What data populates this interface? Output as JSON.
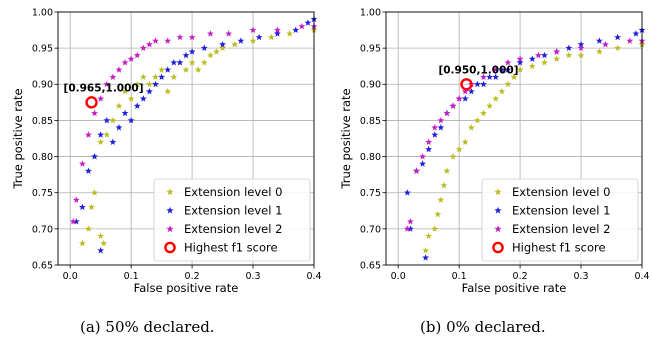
{
  "captions": [
    "(a) 50% declared.",
    "(b) 0% declared."
  ],
  "chart_data": [
    {
      "type": "scatter",
      "xlabel": "False positive rate",
      "ylabel": "True positive rate",
      "xlim": [
        -0.02,
        0.4
      ],
      "ylim": [
        0.65,
        1.0
      ],
      "xticks": [
        "0.0",
        "0.1",
        "0.2",
        "0.3",
        "0.4"
      ],
      "yticks": [
        "0.65",
        "0.70",
        "0.75",
        "0.80",
        "0.85",
        "0.90",
        "0.95",
        "1.00"
      ],
      "grid": true,
      "legend_position": "lower-right",
      "annotation": {
        "label": "[0.965,1.000]",
        "x": 0.035,
        "y": 0.875
      },
      "highlight": {
        "name": "Highest f1 score",
        "x": 0.035,
        "y": 0.875,
        "color": "#ff0000"
      },
      "series": [
        {
          "name": "Extension level 0",
          "color": "#bcbd22",
          "points": [
            [
              0.02,
              0.68
            ],
            [
              0.03,
              0.7
            ],
            [
              0.035,
              0.73
            ],
            [
              0.04,
              0.75
            ],
            [
              0.05,
              0.69
            ],
            [
              0.055,
              0.68
            ],
            [
              0.04,
              0.8
            ],
            [
              0.05,
              0.82
            ],
            [
              0.06,
              0.83
            ],
            [
              0.07,
              0.85
            ],
            [
              0.08,
              0.87
            ],
            [
              0.09,
              0.89
            ],
            [
              0.1,
              0.88
            ],
            [
              0.11,
              0.9
            ],
            [
              0.12,
              0.91
            ],
            [
              0.13,
              0.9
            ],
            [
              0.14,
              0.91
            ],
            [
              0.15,
              0.92
            ],
            [
              0.16,
              0.89
            ],
            [
              0.17,
              0.91
            ],
            [
              0.18,
              0.93
            ],
            [
              0.19,
              0.92
            ],
            [
              0.2,
              0.93
            ],
            [
              0.21,
              0.92
            ],
            [
              0.22,
              0.93
            ],
            [
              0.23,
              0.94
            ],
            [
              0.24,
              0.945
            ],
            [
              0.25,
              0.95
            ],
            [
              0.27,
              0.955
            ],
            [
              0.3,
              0.96
            ],
            [
              0.33,
              0.965
            ],
            [
              0.36,
              0.97
            ],
            [
              0.4,
              0.975
            ]
          ]
        },
        {
          "name": "Extension level 1",
          "color": "#1f1fdf",
          "points": [
            [
              0.01,
              0.71
            ],
            [
              0.02,
              0.73
            ],
            [
              0.03,
              0.78
            ],
            [
              0.04,
              0.8
            ],
            [
              0.05,
              0.67
            ],
            [
              0.05,
              0.83
            ],
            [
              0.06,
              0.85
            ],
            [
              0.07,
              0.82
            ],
            [
              0.08,
              0.84
            ],
            [
              0.09,
              0.86
            ],
            [
              0.1,
              0.85
            ],
            [
              0.11,
              0.87
            ],
            [
              0.12,
              0.88
            ],
            [
              0.13,
              0.89
            ],
            [
              0.14,
              0.9
            ],
            [
              0.15,
              0.91
            ],
            [
              0.16,
              0.92
            ],
            [
              0.17,
              0.93
            ],
            [
              0.18,
              0.93
            ],
            [
              0.19,
              0.94
            ],
            [
              0.2,
              0.945
            ],
            [
              0.22,
              0.95
            ],
            [
              0.25,
              0.955
            ],
            [
              0.28,
              0.96
            ],
            [
              0.31,
              0.965
            ],
            [
              0.34,
              0.97
            ],
            [
              0.37,
              0.975
            ],
            [
              0.39,
              0.985
            ],
            [
              0.4,
              0.99
            ]
          ]
        },
        {
          "name": "Extension level 2",
          "color": "#c41fc4",
          "points": [
            [
              0.005,
              0.71
            ],
            [
              0.01,
              0.74
            ],
            [
              0.02,
              0.79
            ],
            [
              0.03,
              0.83
            ],
            [
              0.04,
              0.86
            ],
            [
              0.05,
              0.88
            ],
            [
              0.06,
              0.9
            ],
            [
              0.07,
              0.91
            ],
            [
              0.08,
              0.92
            ],
            [
              0.09,
              0.93
            ],
            [
              0.1,
              0.935
            ],
            [
              0.11,
              0.94
            ],
            [
              0.12,
              0.95
            ],
            [
              0.13,
              0.955
            ],
            [
              0.14,
              0.96
            ],
            [
              0.16,
              0.96
            ],
            [
              0.18,
              0.965
            ],
            [
              0.2,
              0.965
            ],
            [
              0.23,
              0.97
            ],
            [
              0.26,
              0.97
            ],
            [
              0.3,
              0.975
            ],
            [
              0.34,
              0.975
            ],
            [
              0.38,
              0.98
            ],
            [
              0.4,
              0.98
            ]
          ]
        }
      ]
    },
    {
      "type": "scatter",
      "xlabel": "False positive rate",
      "ylabel": "True positive rate",
      "xlim": [
        -0.02,
        0.4
      ],
      "ylim": [
        0.65,
        1.0
      ],
      "xticks": [
        "0.0",
        "0.1",
        "0.2",
        "0.3",
        "0.4"
      ],
      "yticks": [
        "0.65",
        "0.70",
        "0.75",
        "0.80",
        "0.85",
        "0.90",
        "0.95",
        "1.00"
      ],
      "grid": true,
      "legend_position": "lower-right",
      "annotation": {
        "label": "[0.950,1.000]",
        "x": 0.112,
        "y": 0.9
      },
      "highlight": {
        "name": "Highest f1 score",
        "x": 0.112,
        "y": 0.9,
        "color": "#ff0000"
      },
      "series": [
        {
          "name": "Extension level 0",
          "color": "#bcbd22",
          "points": [
            [
              0.045,
              0.67
            ],
            [
              0.05,
              0.69
            ],
            [
              0.06,
              0.7
            ],
            [
              0.065,
              0.72
            ],
            [
              0.07,
              0.74
            ],
            [
              0.075,
              0.76
            ],
            [
              0.08,
              0.78
            ],
            [
              0.09,
              0.8
            ],
            [
              0.1,
              0.81
            ],
            [
              0.11,
              0.82
            ],
            [
              0.12,
              0.84
            ],
            [
              0.13,
              0.85
            ],
            [
              0.14,
              0.86
            ],
            [
              0.15,
              0.87
            ],
            [
              0.16,
              0.88
            ],
            [
              0.17,
              0.89
            ],
            [
              0.18,
              0.9
            ],
            [
              0.19,
              0.91
            ],
            [
              0.2,
              0.92
            ],
            [
              0.22,
              0.925
            ],
            [
              0.24,
              0.93
            ],
            [
              0.26,
              0.935
            ],
            [
              0.28,
              0.94
            ],
            [
              0.3,
              0.94
            ],
            [
              0.33,
              0.945
            ],
            [
              0.36,
              0.95
            ],
            [
              0.4,
              0.955
            ]
          ]
        },
        {
          "name": "Extension level 1",
          "color": "#1f1fdf",
          "points": [
            [
              0.015,
              0.75
            ],
            [
              0.02,
              0.7
            ],
            [
              0.03,
              0.78
            ],
            [
              0.04,
              0.79
            ],
            [
              0.045,
              0.66
            ],
            [
              0.05,
              0.81
            ],
            [
              0.06,
              0.83
            ],
            [
              0.07,
              0.84
            ],
            [
              0.08,
              0.86
            ],
            [
              0.09,
              0.87
            ],
            [
              0.1,
              0.88
            ],
            [
              0.11,
              0.88
            ],
            [
              0.12,
              0.89
            ],
            [
              0.13,
              0.9
            ],
            [
              0.14,
              0.9
            ],
            [
              0.15,
              0.91
            ],
            [
              0.16,
              0.91
            ],
            [
              0.17,
              0.92
            ],
            [
              0.18,
              0.92
            ],
            [
              0.2,
              0.93
            ],
            [
              0.22,
              0.935
            ],
            [
              0.24,
              0.94
            ],
            [
              0.26,
              0.945
            ],
            [
              0.28,
              0.95
            ],
            [
              0.3,
              0.955
            ],
            [
              0.33,
              0.96
            ],
            [
              0.36,
              0.965
            ],
            [
              0.39,
              0.97
            ],
            [
              0.4,
              0.975
            ]
          ]
        },
        {
          "name": "Extension level 2",
          "color": "#c41fc4",
          "points": [
            [
              0.015,
              0.7
            ],
            [
              0.02,
              0.71
            ],
            [
              0.03,
              0.78
            ],
            [
              0.04,
              0.8
            ],
            [
              0.05,
              0.82
            ],
            [
              0.06,
              0.84
            ],
            [
              0.07,
              0.85
            ],
            [
              0.08,
              0.86
            ],
            [
              0.09,
              0.87
            ],
            [
              0.1,
              0.88
            ],
            [
              0.11,
              0.89
            ],
            [
              0.12,
              0.9
            ],
            [
              0.14,
              0.91
            ],
            [
              0.16,
              0.92
            ],
            [
              0.18,
              0.93
            ],
            [
              0.2,
              0.935
            ],
            [
              0.23,
              0.94
            ],
            [
              0.26,
              0.945
            ],
            [
              0.3,
              0.95
            ],
            [
              0.34,
              0.955
            ],
            [
              0.38,
              0.96
            ],
            [
              0.4,
              0.96
            ]
          ]
        }
      ]
    }
  ]
}
